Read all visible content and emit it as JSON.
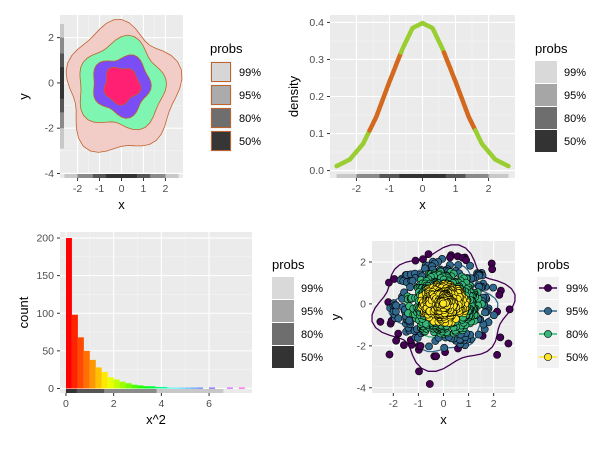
{
  "colors": {
    "panel_bg": "#ebebeb",
    "grid_major": "#ffffff",
    "axis_text": "#4d4d4d",
    "title_text": "#000000",
    "legend_fill": [
      "#d9d9d9",
      "#a6a6a6",
      "#6e6e6e",
      "#333333"
    ]
  },
  "chart_data": [
    {
      "id": "contour",
      "type": "contour",
      "xlabel": "x",
      "ylabel": "y",
      "xlim": [
        -2.8,
        2.8
      ],
      "ylim": [
        -4.2,
        3.0
      ],
      "xticks": [
        -2,
        -1,
        0,
        1,
        2
      ],
      "yticks": [
        -4,
        -2,
        0,
        2
      ],
      "legend": {
        "title": "probs",
        "position": "right",
        "items": [
          {
            "label": "99%",
            "fill": "#d6d6d6",
            "stroke": "#c0622b"
          },
          {
            "label": "95%",
            "fill": "#ababab",
            "stroke": "#c0622b"
          },
          {
            "label": "80%",
            "fill": "#6e6e6e",
            "stroke": "#c0622b"
          },
          {
            "label": "50%",
            "fill": "#363636",
            "stroke": "#c0622b"
          }
        ]
      },
      "regions": [
        {
          "prob": "99%",
          "color": "#f2cdc8",
          "radius": 2.5
        },
        {
          "prob": "95%",
          "color": "#7ff5b2",
          "radius": 1.95
        },
        {
          "prob": "80%",
          "color": "#7a4df7",
          "radius": 1.3
        },
        {
          "prob": "50%",
          "color": "#ff1f73",
          "radius": 0.8
        }
      ]
    },
    {
      "id": "density",
      "type": "line",
      "xlabel": "x",
      "ylabel": "density",
      "xlim": [
        -2.8,
        2.8
      ],
      "ylim": [
        -0.02,
        0.42
      ],
      "xticks": [
        -2,
        -1,
        0,
        1,
        2
      ],
      "yticks": [
        0.0,
        0.1,
        0.2,
        0.3,
        0.4
      ],
      "ytick_labels": [
        "0.0",
        "0.1",
        "0.2",
        "0.3",
        "0.4"
      ],
      "legend": {
        "title": "probs",
        "position": "right",
        "items": [
          {
            "label": "99%",
            "fill": "#d9d9d9"
          },
          {
            "label": "95%",
            "fill": "#a6a6a6"
          },
          {
            "label": "80%",
            "fill": "#6e6e6e"
          },
          {
            "label": "50%",
            "fill": "#333333"
          }
        ]
      },
      "x": [
        -2.6,
        -2.2,
        -1.8,
        -1.4,
        -1.0,
        -0.6,
        -0.3,
        0.0,
        0.3,
        0.6,
        1.0,
        1.4,
        1.8,
        2.2,
        2.6
      ],
      "y": [
        0.012,
        0.03,
        0.072,
        0.145,
        0.24,
        0.33,
        0.385,
        0.398,
        0.385,
        0.33,
        0.24,
        0.145,
        0.072,
        0.03,
        0.012
      ],
      "segments": [
        {
          "from": -2.6,
          "to": -1.6,
          "color": "#9acd32"
        },
        {
          "from": -1.6,
          "to": -0.65,
          "color": "#d2691e"
        },
        {
          "from": -0.65,
          "to": 0.65,
          "color": "#9acd32"
        },
        {
          "from": 0.65,
          "to": 1.6,
          "color": "#d2691e"
        },
        {
          "from": 1.6,
          "to": 2.6,
          "color": "#9acd32"
        }
      ]
    },
    {
      "id": "histogram",
      "type": "bar",
      "xlabel": "x^2",
      "ylabel": "count",
      "xlim": [
        -0.25,
        7.8
      ],
      "ylim": [
        -6,
        208
      ],
      "xticks": [
        0,
        2,
        4,
        6
      ],
      "yticks": [
        0,
        50,
        100,
        150,
        200
      ],
      "legend": {
        "title": "probs",
        "position": "right",
        "items": [
          {
            "label": "99%",
            "fill": "#d9d9d9"
          },
          {
            "label": "95%",
            "fill": "#a6a6a6"
          },
          {
            "label": "80%",
            "fill": "#6e6e6e"
          },
          {
            "label": "50%",
            "fill": "#333333"
          }
        ]
      },
      "bin_width": 0.25,
      "x": [
        0.0,
        0.25,
        0.5,
        0.75,
        1.0,
        1.25,
        1.5,
        1.75,
        2.0,
        2.25,
        2.5,
        2.75,
        3.0,
        3.25,
        3.5,
        3.75,
        4.0,
        4.25,
        4.5,
        4.75,
        5.0,
        5.25,
        5.5,
        5.75,
        6.0,
        6.25,
        6.5,
        6.75,
        7.0,
        7.25
      ],
      "values": [
        200,
        98,
        68,
        50,
        38,
        28,
        22,
        15,
        12,
        9,
        7,
        5,
        4,
        3,
        3,
        2,
        2,
        1,
        1,
        1,
        1,
        1,
        1,
        0,
        1,
        0,
        0,
        1,
        0,
        1
      ],
      "colors": [
        "#ff0000",
        "#ff2400",
        "#ff4a00",
        "#ff7000",
        "#ff9800",
        "#ffc000",
        "#ffe800",
        "#eaff00",
        "#c2ff00",
        "#9cff00",
        "#74ff00",
        "#4cff00",
        "#24ff00",
        "#00ff10",
        "#00ff40",
        "#00ff70",
        "#00ffa0",
        "#00ffd0",
        "#00f4ff",
        "#00c4ff",
        "#0094ff",
        "#0064ff",
        "#0034ff",
        "#0004ff",
        "#2c00ff",
        "#5c00ff",
        "#8c00ff",
        "#bc00ff",
        "#ec00ff",
        "#ff00d4"
      ]
    },
    {
      "id": "scatter",
      "type": "scatter",
      "xlabel": "x",
      "ylabel": "y",
      "xlim": [
        -2.85,
        2.85
      ],
      "ylim": [
        -4.25,
        3.0
      ],
      "xticks": [
        -2,
        -1,
        0,
        1,
        2
      ],
      "yticks": [
        -4,
        -2,
        0,
        2
      ],
      "legend": {
        "title": "probs",
        "position": "right",
        "items": [
          {
            "label": "99%",
            "color": "#440154"
          },
          {
            "label": "95%",
            "color": "#31688e"
          },
          {
            "label": "80%",
            "color": "#35b779"
          },
          {
            "label": "50%",
            "color": "#fde725"
          }
        ]
      },
      "groups": [
        {
          "prob": "50%",
          "color": "#fde725",
          "rmax": 0.95
        },
        {
          "prob": "80%",
          "color": "#35b779",
          "rmax": 1.55
        },
        {
          "prob": "95%",
          "color": "#31688e",
          "rmax": 2.15
        },
        {
          "prob": "99%",
          "color": "#440154",
          "rmax": 3.1
        }
      ]
    }
  ]
}
